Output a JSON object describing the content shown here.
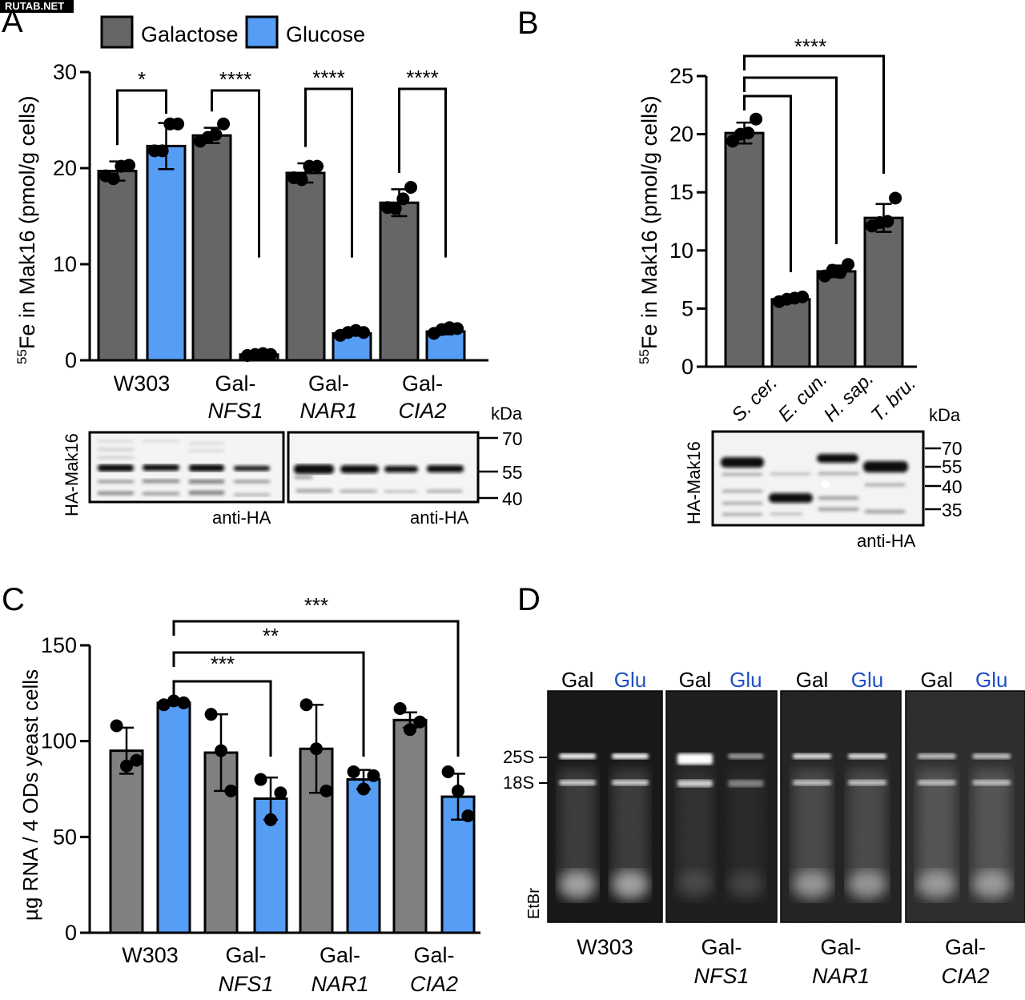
{
  "watermark": "RUTAB.NET",
  "colors": {
    "galactose": "#666666",
    "glucose": "#559df5",
    "glu_label": "#1f4fc4",
    "axis": "#000000"
  },
  "legend": {
    "items": [
      {
        "label": "Galactose",
        "color_key": "galactose"
      },
      {
        "label": "Glucose",
        "color_key": "glucose"
      }
    ]
  },
  "panels": {
    "A": {
      "letter": "A",
      "blot": {
        "ylabel": "HA-Mak16",
        "antibody": [
          "anti-HA",
          "anti-HA"
        ],
        "kda_label": "kDa",
        "markers": [
          "70",
          "55",
          "40"
        ]
      }
    },
    "B": {
      "letter": "B",
      "blot": {
        "ylabel": "HA-Mak16",
        "antibody": "anti-HA",
        "kda_label": "kDa",
        "markers": [
          "70",
          "55",
          "40",
          "35"
        ]
      }
    },
    "C": {
      "letter": "C"
    },
    "D": {
      "letter": "D",
      "lane_labels": [
        "Gal",
        "Glu"
      ],
      "band_labels": [
        "25S",
        "18S"
      ],
      "stain_label": "EtBr",
      "groups": [
        {
          "line1": "W303",
          "line2": ""
        },
        {
          "line1": "Gal-",
          "line2": "NFS1"
        },
        {
          "line1": "Gal-",
          "line2": "NAR1"
        },
        {
          "line1": "Gal-",
          "line2": "CIA2"
        }
      ]
    }
  },
  "chart_data": [
    {
      "id": "A",
      "type": "bar",
      "title": "",
      "ylabel_sup": "55",
      "ylabel": "Fe in Mak16 (pmol/g cells)",
      "ylim": [
        0,
        30
      ],
      "yticks": [
        0,
        10,
        20,
        30
      ],
      "groups": [
        {
          "line1": "W303",
          "line2": ""
        },
        {
          "line1": "Gal-",
          "line2": "NFS1"
        },
        {
          "line1": "Gal-",
          "line2": "NAR1"
        },
        {
          "line1": "Gal-",
          "line2": "CIA2"
        }
      ],
      "series": [
        {
          "name": "Galactose",
          "values": [
            19.7,
            23.4,
            19.5,
            16.4
          ],
          "sd": [
            1.0,
            0.8,
            1.0,
            1.4
          ],
          "points": [
            [
              19.2,
              18.9,
              20.2,
              20.3
            ],
            [
              22.8,
              23.2,
              23.5,
              24.6
            ],
            [
              19.0,
              18.8,
              20.2,
              20.2
            ],
            [
              15.9,
              15.8,
              16.8,
              18.0
            ]
          ]
        },
        {
          "name": "Glucose",
          "values": [
            22.3,
            0.6,
            2.8,
            3.0
          ],
          "sd": [
            2.4,
            0.1,
            0.2,
            0.3
          ],
          "points": [
            [
              21.8,
              21.8,
              24.6,
              24.6
            ],
            [
              0.5,
              0.6,
              0.7,
              0.6
            ],
            [
              2.6,
              2.9,
              3.1,
              2.9
            ],
            [
              2.8,
              3.2,
              3.4,
              3.3
            ]
          ]
        }
      ],
      "significance": [
        {
          "group": 0,
          "label": "*"
        },
        {
          "group": 1,
          "label": "****"
        },
        {
          "group": 2,
          "label": "****"
        },
        {
          "group": 3,
          "label": "****"
        }
      ]
    },
    {
      "id": "B",
      "type": "bar",
      "title": "",
      "ylabel_sup": "55",
      "ylabel": "Fe in Mak16 (pmol/g cells)",
      "ylim": [
        0,
        25
      ],
      "yticks": [
        0,
        5,
        10,
        15,
        20,
        25
      ],
      "categories": [
        "S. cer.",
        "E. cun.",
        "H. sap.",
        "T. bru."
      ],
      "values": [
        20.1,
        5.8,
        8.2,
        12.8
      ],
      "sd": [
        0.9,
        0.2,
        0.5,
        1.2
      ],
      "points": [
        [
          19.4,
          20.0,
          20.1,
          21.3
        ],
        [
          5.6,
          5.8,
          5.9,
          6.0
        ],
        [
          7.8,
          8.3,
          8.1,
          8.8
        ],
        [
          12.1,
          12.4,
          12.5,
          14.5
        ]
      ],
      "series_color_key": "galactose",
      "significance": [
        {
          "label": "****",
          "from": 0,
          "to": [
            1,
            2,
            3
          ]
        }
      ]
    },
    {
      "id": "C",
      "type": "bar",
      "title": "",
      "ylabel": "µg RNA / 4 ODs yeast cells",
      "ylim": [
        0,
        150
      ],
      "yticks": [
        0,
        50,
        100,
        150
      ],
      "groups": [
        {
          "line1": "W303",
          "line2": ""
        },
        {
          "line1": "Gal-",
          "line2": "NFS1"
        },
        {
          "line1": "Gal-",
          "line2": "NAR1"
        },
        {
          "line1": "Gal-",
          "line2": "CIA2"
        }
      ],
      "series": [
        {
          "name": "Galactose",
          "values": [
            95,
            94,
            96,
            111
          ],
          "sd": [
            12,
            20,
            23,
            4
          ],
          "points": [
            [
              108,
              87,
              90
            ],
            [
              114,
              95,
              74
            ],
            [
              119,
              96,
              74
            ],
            [
              117,
              106,
              110
            ]
          ]
        },
        {
          "name": "Glucose",
          "values": [
            120,
            70,
            80,
            71
          ],
          "sd": [
            1,
            11,
            5,
            12
          ],
          "points": [
            [
              119,
              121,
              120
            ],
            [
              80,
              59,
              73
            ],
            [
              84,
              75,
              82
            ],
            [
              84,
              74,
              61
            ]
          ]
        }
      ],
      "significance": [
        {
          "from": [
            0,
            1
          ],
          "to": [
            1,
            1
          ],
          "label": "***"
        },
        {
          "from": [
            0,
            1
          ],
          "to": [
            2,
            1
          ],
          "label": "**"
        },
        {
          "from": [
            0,
            1
          ],
          "to": [
            3,
            1
          ],
          "label": "***"
        }
      ]
    }
  ]
}
